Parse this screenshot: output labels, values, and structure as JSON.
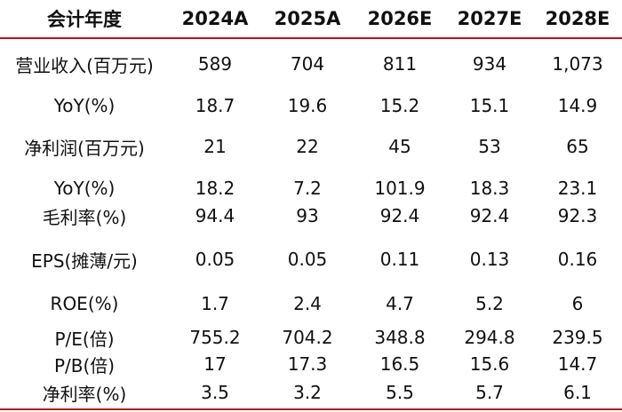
{
  "table": {
    "headers": [
      "会计年度",
      "2024A",
      "2025A",
      "2026E",
      "2027E",
      "2028E"
    ],
    "rows": [
      {
        "label": "营业收入(百万元)",
        "values": [
          "589",
          "704",
          "811",
          "934",
          "1,073"
        ]
      },
      {
        "label": "YoY(%)",
        "values": [
          "18.7",
          "19.6",
          "15.2",
          "15.1",
          "14.9"
        ]
      },
      {
        "label": "净利润(百万元)",
        "values": [
          "21",
          "22",
          "45",
          "53",
          "65"
        ]
      },
      {
        "label": "YoY(%)",
        "values": [
          "18.2",
          "7.2",
          "101.9",
          "18.3",
          "23.1"
        ]
      },
      {
        "label": "毛利率(%)",
        "values": [
          "94.4",
          "93",
          "92.4",
          "92.4",
          "92.3"
        ]
      },
      {
        "label": "EPS(摊薄/元)",
        "values": [
          "0.05",
          "0.05",
          "0.11",
          "0.13",
          "0.16"
        ]
      },
      {
        "label": "ROE(%)",
        "values": [
          "1.7",
          "2.4",
          "4.7",
          "5.2",
          "6"
        ]
      },
      {
        "label": "P/E(倍)",
        "values": [
          "755.2",
          "704.2",
          "348.8",
          "294.8",
          "239.5"
        ]
      },
      {
        "label": "P/B(倍)",
        "values": [
          "17",
          "17.3",
          "16.5",
          "15.6",
          "14.7"
        ]
      },
      {
        "label": "净利率(%)",
        "values": [
          "3.5",
          "3.2",
          "5.5",
          "5.7",
          "6.1"
        ]
      }
    ]
  },
  "colors": {
    "rule": "#c0101a",
    "text": "#111111",
    "background": "#ffffff"
  }
}
